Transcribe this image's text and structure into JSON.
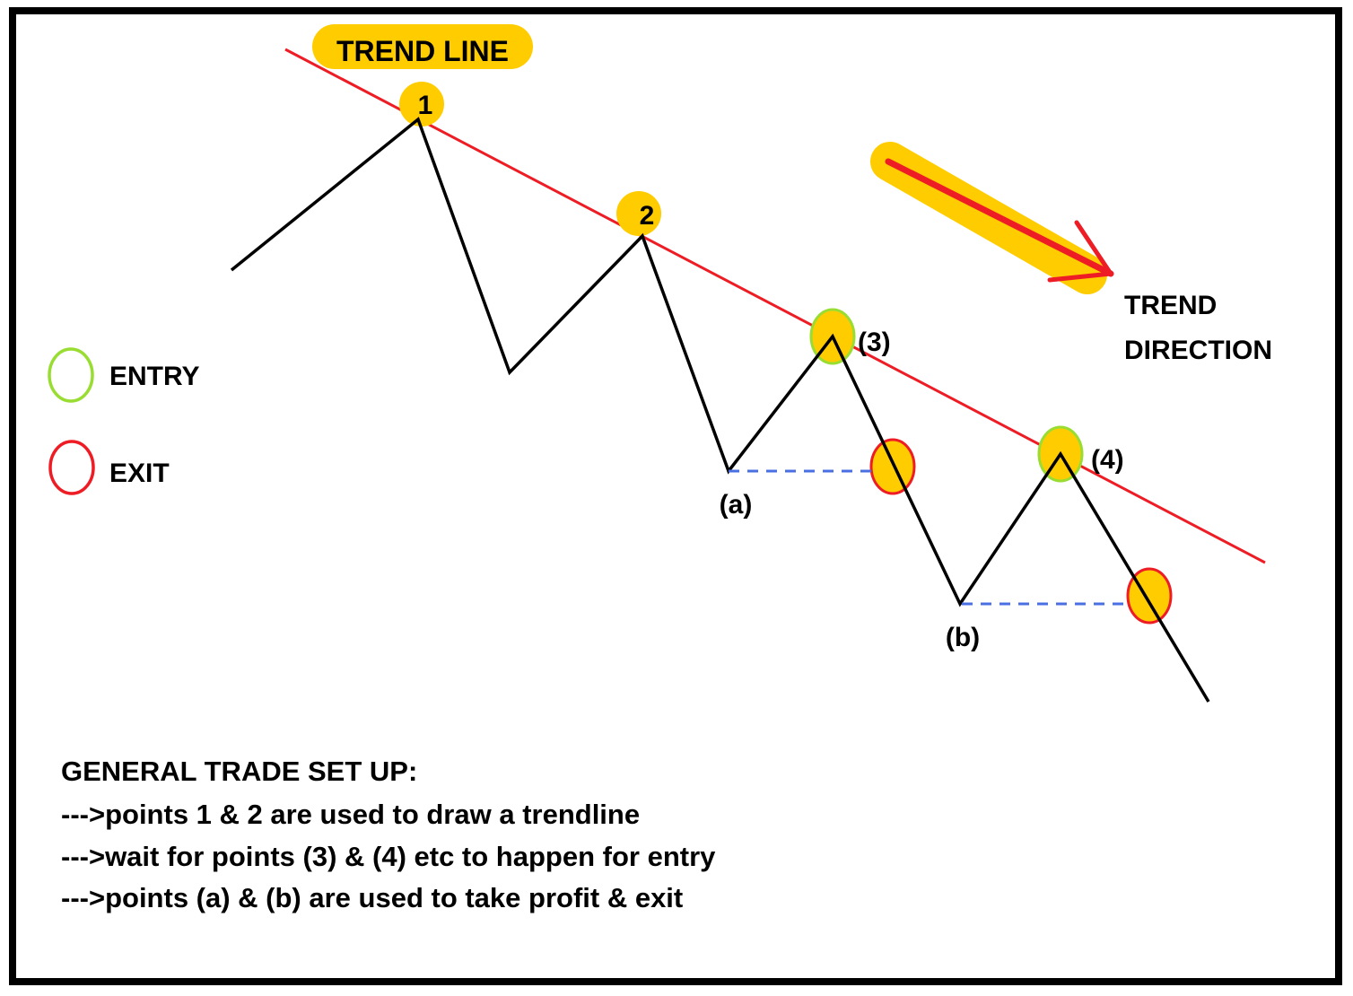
{
  "title": "TREND LINE",
  "direction_label": [
    "TREND",
    "DIRECTION"
  ],
  "legend": {
    "entry": {
      "label": "ENTRY",
      "color": "#99dd33"
    },
    "exit": {
      "label": "EXIT",
      "color": "#ee1c24"
    }
  },
  "points": {
    "p1": "1",
    "p2": "2",
    "p3": "(3)",
    "p4": "(4)",
    "pa": "(a)",
    "pb": "(b)"
  },
  "notes": {
    "heading": "GENERAL TRADE SET UP:",
    "lines": [
      "--->points 1 & 2 are used to draw a trendline",
      "--->wait for points (3) & (4) etc to happen for entry",
      "--->points (a) & (b) are used to take profit & exit"
    ]
  },
  "colors": {
    "highlight": "#ffcc00",
    "trendline": "#ee1c24",
    "price": "#000000",
    "target": "#4a6fe3",
    "border": "#000000"
  }
}
